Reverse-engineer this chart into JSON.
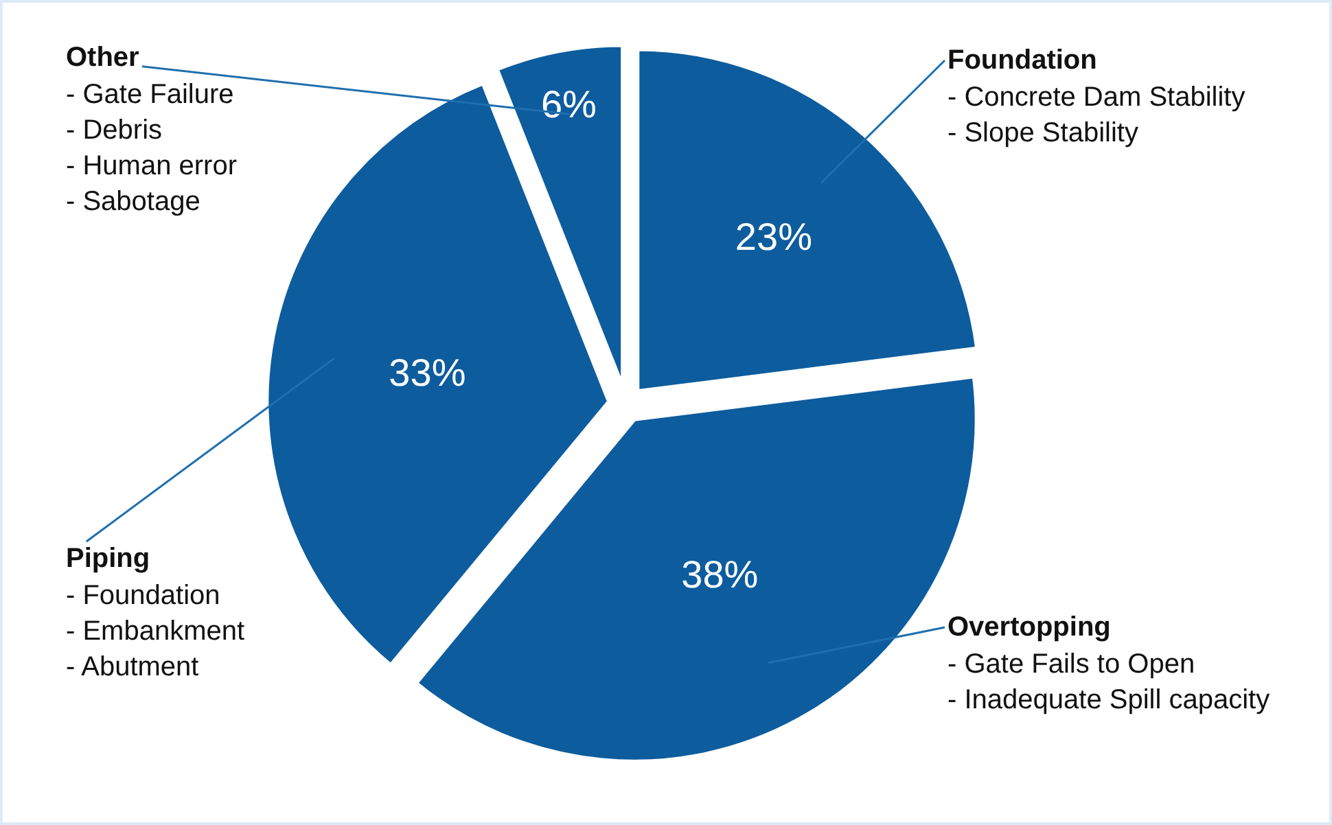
{
  "chart_data": {
    "type": "pie",
    "categories": [
      "Foundation",
      "Overtopping",
      "Piping",
      "Other"
    ],
    "values": [
      23,
      38,
      33,
      6
    ],
    "value_labels": [
      "23%",
      "38%",
      "33%",
      "6%"
    ],
    "colors": [
      "#0d5c9e",
      "#0d5c9e",
      "#0d5c9e",
      "#0d5c9e"
    ],
    "annotations": [
      "- Concrete Dam Stability\n- Slope Stability",
      "- Gate Fails to Open\n- Inadequate Spill capacity",
      "- Foundation\n- Embankment\n- Abutment",
      "- Gate Failure\n- Debris\n- Human error\n- Sabotage"
    ],
    "legend": false
  }
}
